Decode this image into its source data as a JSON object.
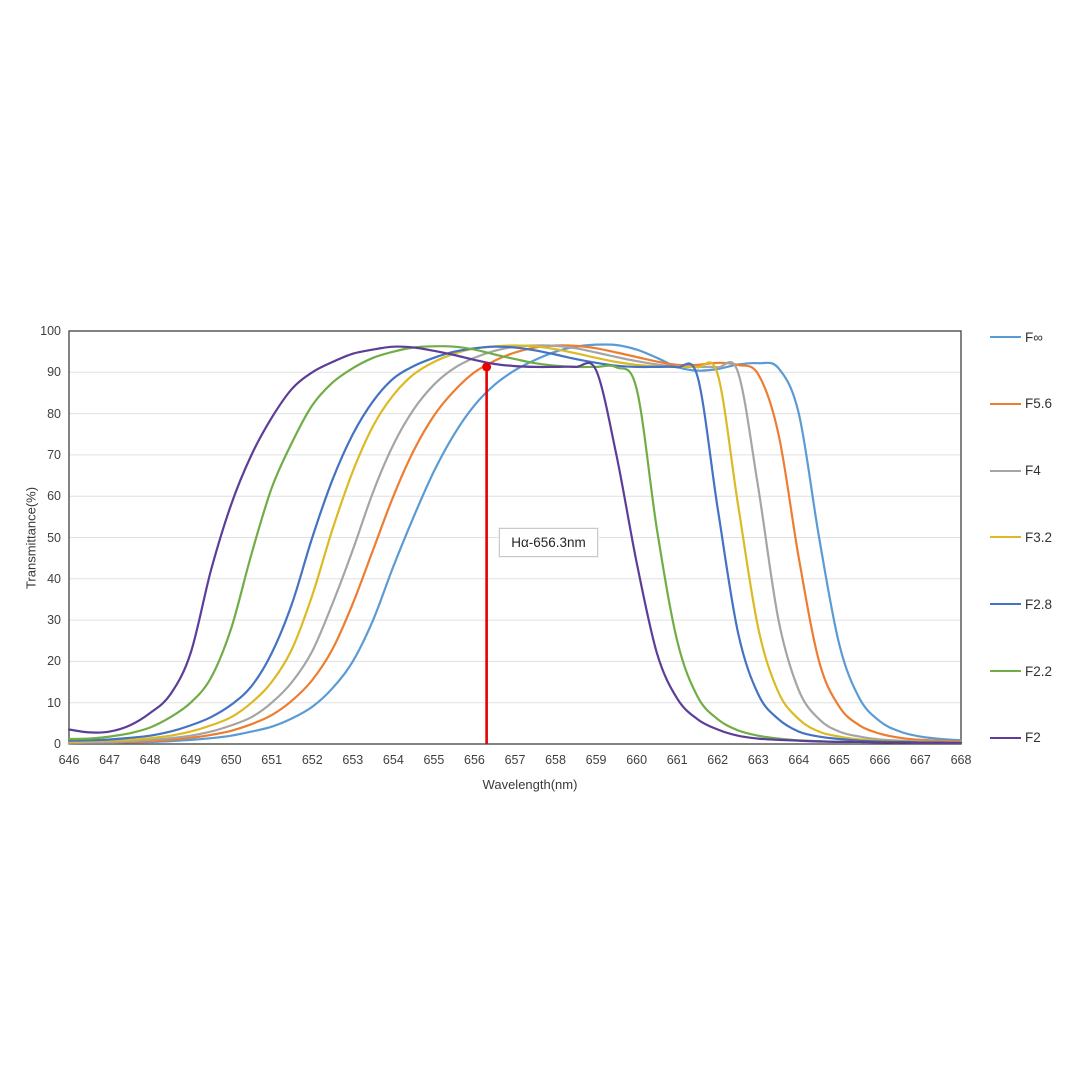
{
  "chart_data": {
    "type": "line",
    "title": "",
    "xlabel": "Wavelength(nm)",
    "ylabel": "Transmittance(%)",
    "xlim": [
      646,
      668
    ],
    "ylim": [
      0,
      100
    ],
    "x_start": 646,
    "x_step": 0.5,
    "x_ticks": [
      646,
      647,
      648,
      649,
      650,
      651,
      652,
      653,
      654,
      655,
      656,
      657,
      658,
      659,
      660,
      661,
      662,
      663,
      664,
      665,
      666,
      667,
      668
    ],
    "y_ticks": [
      0,
      10,
      20,
      30,
      40,
      50,
      60,
      70,
      80,
      90,
      100
    ],
    "grid": "horizontal",
    "legend_position": "right",
    "colors": {
      "grid": "#e0e0e0",
      "plot_border": "#404040",
      "tick_text": "#3f3f3f",
      "annotation_red": "#e60000"
    },
    "series": [
      {
        "name": "F∞",
        "color": "#5B9BD5",
        "values": [
          0.2,
          0.3,
          0.3,
          0.4,
          0.5,
          0.7,
          1,
          1.4,
          2,
          3,
          4.2,
          6.2,
          9,
          13.5,
          20,
          30,
          43,
          55,
          66,
          75,
          82,
          87,
          90.5,
          93,
          95,
          96.2,
          96.7,
          96.6,
          95.5,
          93.5,
          91.3,
          90.4,
          90.8,
          91.9,
          92.2,
          91,
          80,
          50,
          24,
          11,
          5.5,
          3,
          1.8,
          1.2,
          0.9
        ]
      },
      {
        "name": "F5.6",
        "color": "#ED7D31",
        "values": [
          0.3,
          0.4,
          0.4,
          0.5,
          0.7,
          1,
          1.5,
          2.2,
          3.2,
          4.8,
          7,
          10.5,
          15.5,
          23,
          34,
          47,
          60,
          71,
          79.5,
          85.5,
          90,
          92.8,
          94.8,
          96,
          96.5,
          96.4,
          95.8,
          94.8,
          93.7,
          92.6,
          91.8,
          91.8,
          92.3,
          91.8,
          89.5,
          75,
          45,
          20,
          9,
          4.5,
          2.5,
          1.5,
          1,
          0.8,
          0.6
        ]
      },
      {
        "name": "F4",
        "color": "#A5A5A5",
        "values": [
          0.4,
          0.4,
          0.5,
          0.7,
          1,
          1.4,
          2,
          3,
          4.5,
          6.5,
          10,
          15,
          22.5,
          34,
          47,
          61,
          72.5,
          81,
          87,
          91,
          93.5,
          95.2,
          96.2,
          96.5,
          96.4,
          95.8,
          94.8,
          93.7,
          92.7,
          91.9,
          91.4,
          91.3,
          91.2,
          90,
          62,
          30,
          13,
          6,
          3,
          1.8,
          1.1,
          0.8,
          0.6,
          0.5,
          0.4
        ]
      },
      {
        "name": "F3.2",
        "color": "#DCBA23",
        "values": [
          0.5,
          0.6,
          0.8,
          1,
          1.4,
          2,
          3,
          4.5,
          6.5,
          10,
          15,
          23,
          36,
          52,
          66,
          77,
          84.5,
          89.5,
          92.5,
          94.5,
          95.8,
          96.3,
          96.5,
          96.3,
          95.6,
          94.6,
          93.5,
          92.5,
          91.8,
          91.4,
          91.3,
          91.2,
          89.5,
          58,
          28,
          12.5,
          6,
          3,
          1.8,
          1.1,
          0.8,
          0.6,
          0.5,
          0.4,
          0.4
        ]
      },
      {
        "name": "F2.8",
        "color": "#4472C4",
        "values": [
          0.8,
          0.9,
          1.1,
          1.5,
          2,
          3,
          4.5,
          6.5,
          9.5,
          14,
          22,
          34,
          50,
          64,
          75,
          83,
          88.5,
          91.5,
          93.5,
          95,
          95.8,
          96.2,
          96,
          95.3,
          94.3,
          93.2,
          92.3,
          91.6,
          91.3,
          91.3,
          91.2,
          89,
          57,
          27,
          12,
          6,
          3,
          1.8,
          1.2,
          0.8,
          0.6,
          0.5,
          0.4,
          0.4,
          0.3
        ]
      },
      {
        "name": "F2.2",
        "color": "#70AD47",
        "values": [
          1.2,
          1.3,
          1.8,
          2.6,
          4,
          6.5,
          10,
          16,
          28,
          46,
          62,
          73,
          82,
          87.5,
          91,
          93.5,
          95,
          96,
          96.3,
          96.2,
          95.5,
          94.3,
          93.2,
          92.2,
          91.6,
          91.3,
          91.3,
          91.2,
          86,
          52,
          25,
          11.5,
          6,
          3.3,
          2,
          1.3,
          0.9,
          0.7,
          0.5,
          0.5,
          0.4,
          0.4,
          0.3,
          0.3,
          0.3
        ]
      },
      {
        "name": "F2",
        "color": "#5C3E99",
        "values": [
          3.5,
          2.8,
          3,
          4.5,
          7.5,
          12,
          22,
          42,
          58,
          70,
          79,
          86,
          90,
          92.5,
          94.5,
          95.5,
          96.2,
          96,
          95.2,
          94.2,
          93,
          92,
          91.5,
          91.3,
          91.3,
          91.3,
          90.5,
          70,
          44,
          22,
          11,
          6,
          3.5,
          2,
          1.3,
          1,
          0.8,
          0.6,
          0.5,
          0.5,
          0.4,
          0.4,
          0.3,
          0.3,
          0.3
        ]
      }
    ],
    "annotation": {
      "label": "Hα-656.3nm",
      "x": 656.3,
      "y_top": 91.3,
      "color": "#e60000"
    }
  }
}
